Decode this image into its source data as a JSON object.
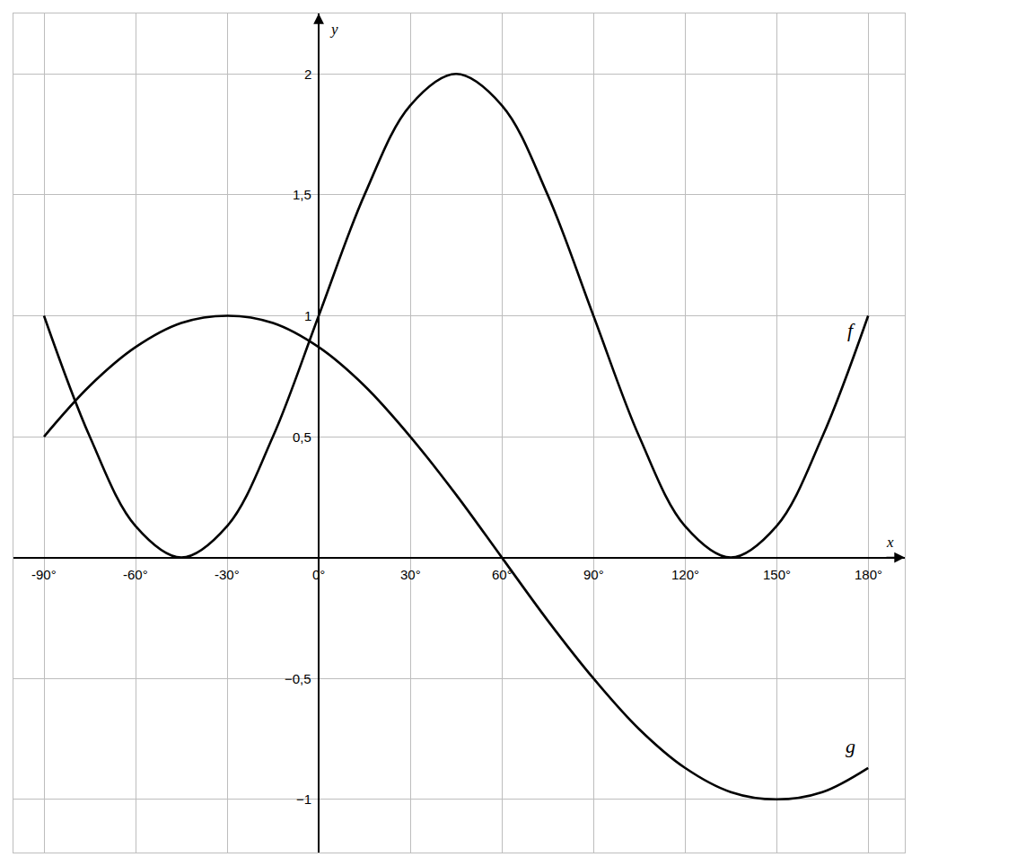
{
  "chart_data": {
    "type": "line",
    "x_label": "x",
    "y_label": "y",
    "x": [
      -90,
      -75,
      -60,
      -45,
      -30,
      -15,
      0,
      15,
      30,
      45,
      60,
      75,
      90,
      105,
      120,
      135,
      150,
      165,
      180
    ],
    "series": [
      {
        "name": "f",
        "color": "#000000",
        "line_style": "solid",
        "values": [
          1,
          0.5,
          0.13,
          0,
          0.13,
          0.5,
          1,
          1.5,
          1.87,
          2,
          1.87,
          1.5,
          1,
          0.5,
          0.13,
          0,
          0.13,
          0.5,
          1
        ]
      },
      {
        "name": "g",
        "color": "#000000",
        "line_style": "solid",
        "values": [
          0.5,
          0.71,
          0.87,
          0.97,
          1,
          0.97,
          0.87,
          0.71,
          0.5,
          0.26,
          0,
          -0.26,
          -0.5,
          -0.71,
          -0.87,
          -0.97,
          -1,
          -0.97,
          -0.87
        ]
      }
    ],
    "xlim": [
      -100,
      192
    ],
    "ylim": [
      -1.22,
      2.25
    ],
    "xticks": [
      {
        "value": -90,
        "label": "-90°"
      },
      {
        "value": -60,
        "label": "-60°"
      },
      {
        "value": -30,
        "label": "-30°"
      },
      {
        "value": 0,
        "label": "0°"
      },
      {
        "value": 30,
        "label": "30°"
      },
      {
        "value": 60,
        "label": "60°"
      },
      {
        "value": 90,
        "label": "90°"
      },
      {
        "value": 120,
        "label": "120°"
      },
      {
        "value": 150,
        "label": "150°"
      },
      {
        "value": 180,
        "label": "180°"
      }
    ],
    "yticks": [
      {
        "value": -1,
        "label": "−1"
      },
      {
        "value": -0.5,
        "label": "−0,5"
      },
      {
        "value": 0.5,
        "label": "0,5"
      },
      1,
      {
        "value": 1.5,
        "label": "1,5"
      },
      2
    ],
    "grid": true
  }
}
